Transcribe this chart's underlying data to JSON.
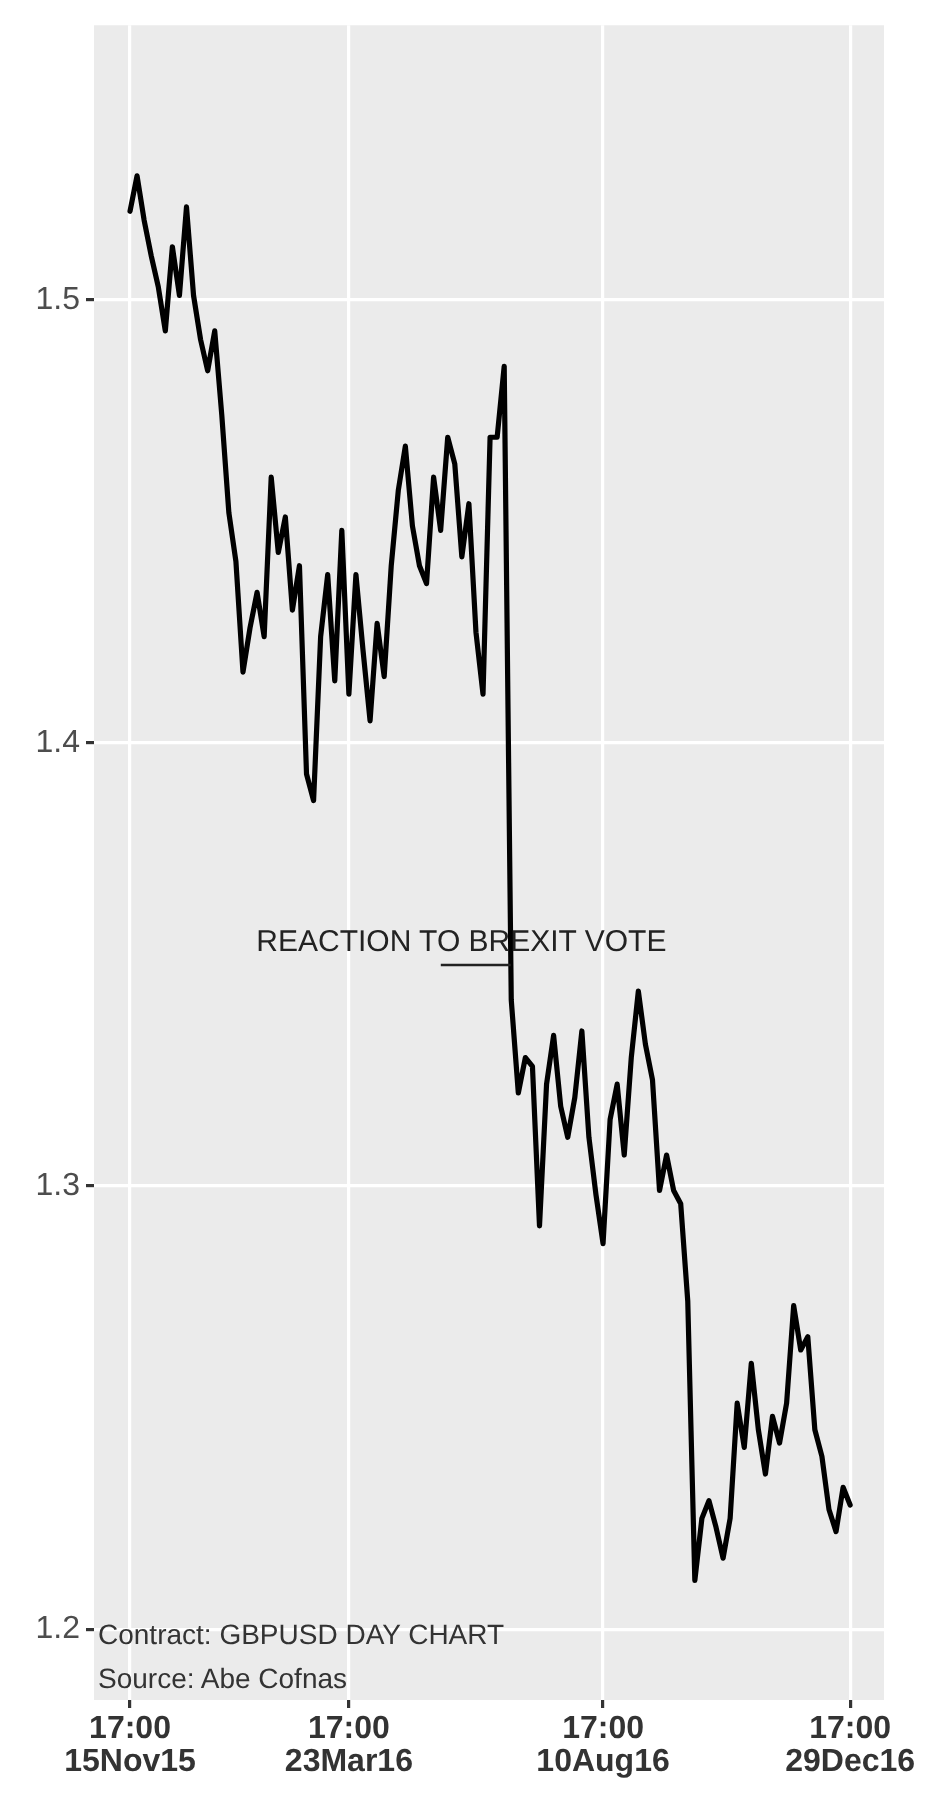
{
  "chart_data": {
    "type": "line",
    "annotations": [
      "REACTION TO BREXIT VOTE",
      "Contract: GBPUSD DAY CHART",
      "Source: Abe Cofnas"
    ],
    "categories": [
      "17:00 15Nov15",
      null,
      null,
      null,
      null,
      null,
      null,
      null,
      null,
      null,
      null,
      null,
      null,
      null,
      null,
      null,
      null,
      null,
      null,
      null,
      null,
      null,
      null,
      null,
      null,
      null,
      null,
      null,
      null,
      null,
      null,
      "17:00 23Mar16",
      null,
      null,
      null,
      null,
      null,
      null,
      null,
      null,
      null,
      null,
      null,
      null,
      null,
      null,
      null,
      null,
      null,
      null,
      null,
      null,
      null,
      null,
      null,
      null,
      null,
      null,
      null,
      null,
      null,
      null,
      null,
      null,
      null,
      null,
      null,
      "17:00 10Aug16",
      null,
      null,
      null,
      null,
      null,
      null,
      null,
      null,
      null,
      null,
      null,
      null,
      null,
      null,
      null,
      null,
      null,
      null,
      null,
      null,
      null,
      null,
      null,
      null,
      null,
      null,
      null,
      null,
      null,
      null,
      null,
      null,
      null,
      null,
      "17:00 29Dec16"
    ],
    "series": [
      {
        "color": "#000000",
        "values": [
          1.52,
          1.528,
          1.518,
          1.51,
          1.503,
          1.493,
          1.512,
          1.501,
          1.521,
          1.501,
          1.491,
          1.484,
          1.493,
          1.474,
          1.452,
          1.441,
          1.416,
          1.426,
          1.434,
          1.424,
          1.46,
          1.443,
          1.451,
          1.43,
          1.44,
          1.393,
          1.387,
          1.424,
          1.438,
          1.414,
          1.448,
          1.411,
          1.438,
          1.421,
          1.405,
          1.427,
          1.415,
          1.44,
          1.457,
          1.467,
          1.449,
          1.44,
          1.436,
          1.46,
          1.448,
          1.469,
          1.463,
          1.442,
          1.454,
          1.425,
          1.411,
          1.469,
          1.469,
          1.485,
          1.342,
          1.321,
          1.329,
          1.327,
          1.291,
          1.323,
          1.334,
          1.318,
          1.311,
          1.32,
          1.335,
          1.311,
          1.298,
          1.287,
          1.315,
          1.323,
          1.307,
          1.329,
          1.344,
          1.332,
          1.324,
          1.299,
          1.307,
          1.299,
          1.296,
          1.274,
          1.211,
          1.225,
          1.229,
          1.223,
          1.216,
          1.225,
          1.251,
          1.241,
          1.26,
          1.245,
          1.235,
          1.248,
          1.242,
          1.251,
          1.273,
          1.263,
          1.266,
          1.245,
          1.239,
          1.227,
          1.222,
          1.232,
          1.228
        ]
      }
    ],
    "ylim": [
      1.184,
      1.562
    ],
    "yticks": [
      1.2,
      1.3,
      1.4,
      1.5
    ],
    "grid": true,
    "legend": false,
    "marker": "none",
    "line_style": "solid"
  }
}
